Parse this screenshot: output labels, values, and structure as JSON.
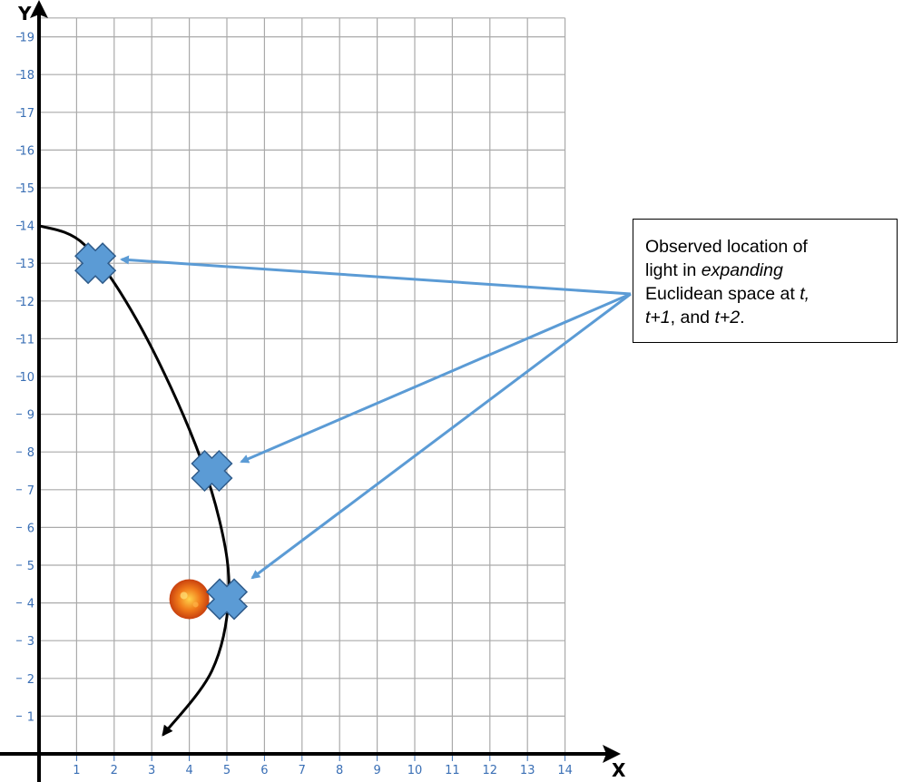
{
  "axes": {
    "x_letter": "X",
    "y_letter": "Y",
    "x_ticks": [
      "1",
      "2",
      "3",
      "4",
      "5",
      "6",
      "7",
      "8",
      "9",
      "10",
      "11",
      "12",
      "13",
      "14"
    ],
    "y_ticks": [
      "1",
      "2",
      "3",
      "4",
      "5",
      "6",
      "7",
      "8",
      "9",
      "10",
      "11",
      "12",
      "13",
      "14",
      "15",
      "16",
      "17",
      "18",
      "19"
    ],
    "x_range": [
      0,
      14
    ],
    "y_range": [
      0,
      19
    ],
    "grid": true
  },
  "curve": {
    "points": [
      [
        0,
        14
      ],
      [
        1.2,
        13.5
      ],
      [
        2.6,
        11.5
      ],
      [
        4.0,
        8.6
      ],
      [
        4.8,
        6.2
      ],
      [
        5.05,
        4.2
      ],
      [
        4.6,
        2.2
      ],
      [
        3.3,
        0.5
      ]
    ],
    "end_arrow": true,
    "color": "#000000"
  },
  "markers": [
    {
      "x": 1.5,
      "y": 13
    },
    {
      "x": 4.6,
      "y": 7.5
    },
    {
      "x": 5.0,
      "y": 4.1
    }
  ],
  "sun": {
    "x": 4.0,
    "y": 4.1
  },
  "callout": {
    "line1": "Observed location of",
    "line2_prefix": "light in ",
    "line2_em": "expanding",
    "line3_prefix": "Euclidean space at ",
    "line3_em": "t,",
    "line4_em1": "t+1",
    "line4_mid": ", and ",
    "line4_em2": "t+2",
    "line4_suffix": "."
  },
  "colors": {
    "grid": "#aaaaaa",
    "tick_label": "#3a6fb5",
    "marker_fill": "#5b9bd5",
    "marker_stroke": "#2f5b8a",
    "arrow": "#5b9bd5"
  }
}
